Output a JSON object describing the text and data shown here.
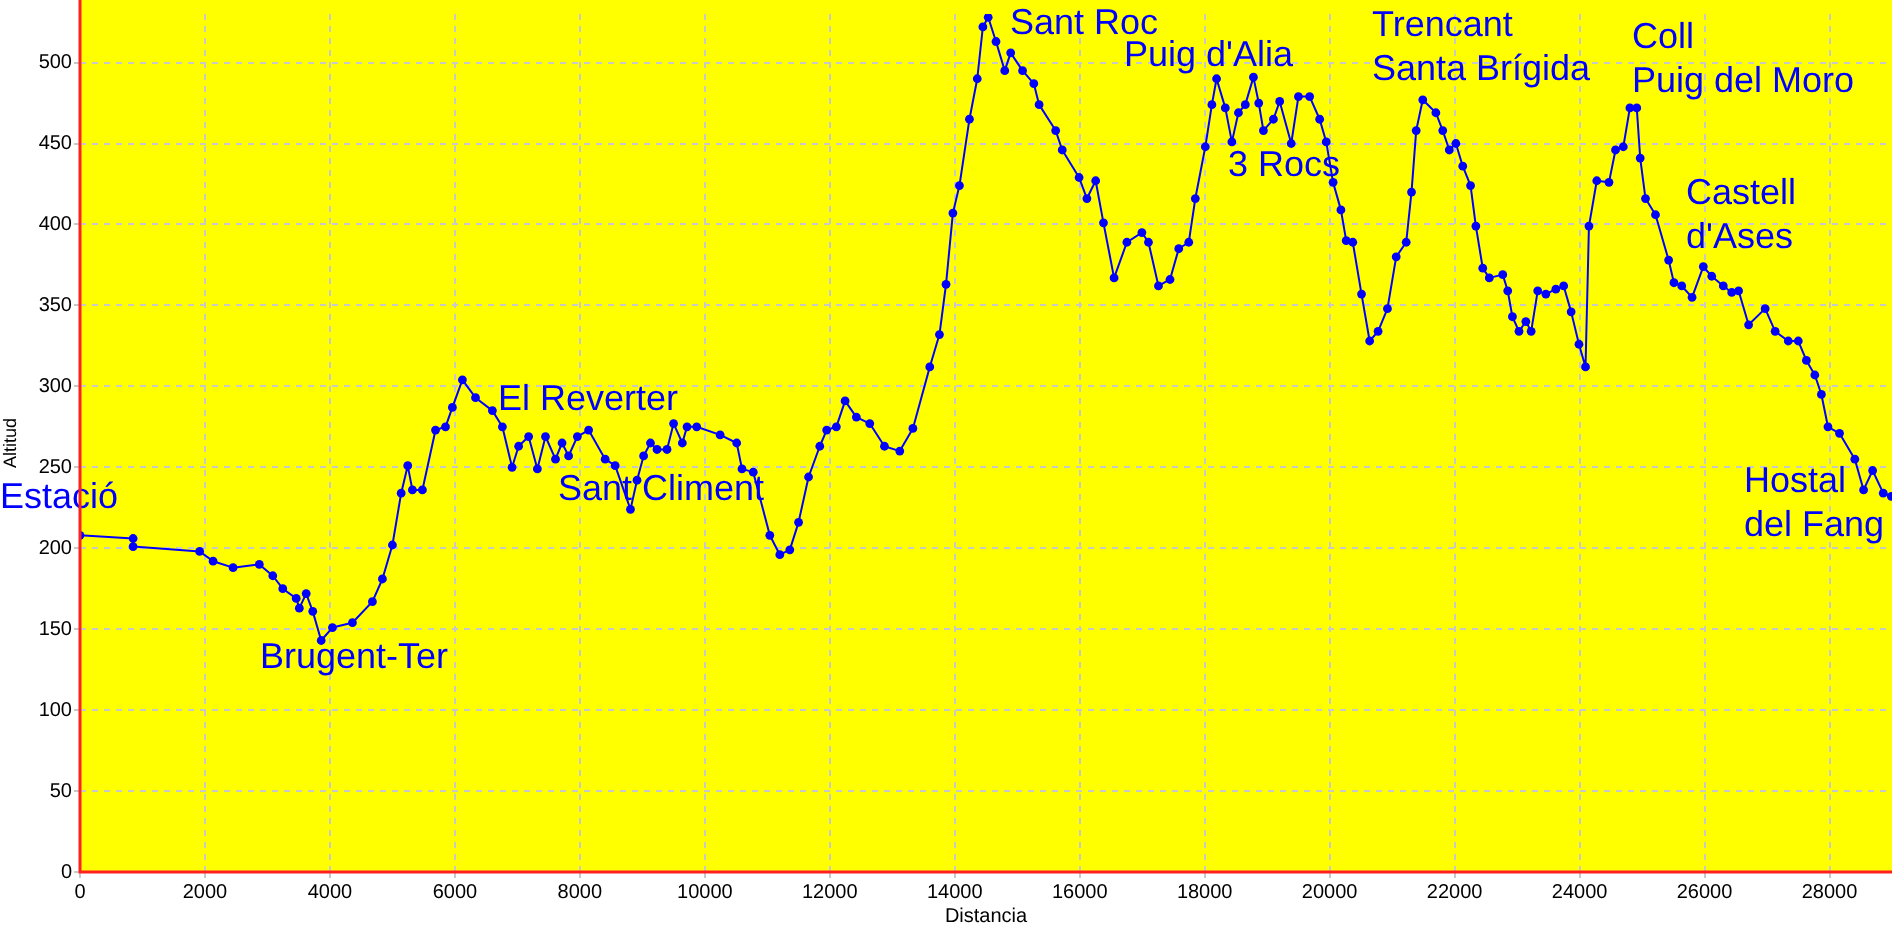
{
  "chart_data": {
    "type": "line",
    "xlabel": "Distancia",
    "ylabel": "Altitud",
    "xlim": [
      0,
      29000
    ],
    "xticks": [
      0,
      2000,
      4000,
      6000,
      8000,
      10000,
      12000,
      14000,
      16000,
      18000,
      20000,
      22000,
      24000,
      26000,
      28000
    ],
    "ylim": [
      0,
      530
    ],
    "yticks": [
      0,
      50,
      100,
      150,
      200,
      250,
      300,
      350,
      400,
      450,
      500
    ],
    "grid": true,
    "legend": false,
    "marker": "circle",
    "line_style": "solid",
    "annotations": [
      "Estació",
      "Brugent-Ter",
      "El Reverter",
      "Sant Climent",
      "Sant Roc",
      "Puig d'Alia",
      "3 Rocs",
      "Trencant\nSanta Brígida",
      "Coll\nPuig del Moro",
      "Castell\nd'Ases",
      "Hostal\ndel Fang"
    ],
    "series": [
      {
        "color": "#0000ff",
        "x": [
          0,
          850,
          850,
          1915,
          2130,
          2450,
          2870,
          3085,
          3245,
          3460,
          3510,
          3620,
          3725,
          3860,
          4040,
          4360,
          4680,
          4840,
          5000,
          5140,
          5245,
          5320,
          5480,
          5690,
          5850,
          5960,
          6120,
          6330,
          6600,
          6760,
          6915,
          7020,
          7180,
          7320,
          7450,
          7610,
          7715,
          7820,
          7960,
          8140,
          8405,
          8565,
          8810,
          8915,
          9020,
          9130,
          9235,
          9395,
          9500,
          9640,
          9715,
          9870,
          10245,
          10510,
          10595,
          10775,
          11040,
          11200,
          11360,
          11500,
          11660,
          11840,
          11950,
          12105,
          12245,
          12425,
          12640,
          12875,
          13120,
          13330,
          13600,
          13755,
          13860,
          13970,
          14075,
          14235,
          14360,
          14450,
          14535,
          14660,
          14800,
          14895,
          15085,
          15265,
          15350,
          15615,
          15720,
          15990,
          16115,
          16255,
          16380,
          16550,
          16755,
          16995,
          17100,
          17260,
          17445,
          17585,
          17745,
          17850,
          18010,
          18115,
          18190,
          18330,
          18435,
          18540,
          18650,
          18780,
          18865,
          18940,
          19100,
          19200,
          19385,
          19500,
          19680,
          19840,
          19945,
          20055,
          20180,
          20265,
          20370,
          20510,
          20640,
          20775,
          20925,
          21065,
          21225,
          21310,
          21385,
          21490,
          21700,
          21810,
          21915,
          22020,
          22130,
          22255,
          22340,
          22450,
          22555,
          22770,
          22850,
          22925,
          23030,
          23140,
          23225,
          23330,
          23460,
          23620,
          23745,
          23865,
          23990,
          24095,
          24150,
          24275,
          24470,
          24575,
          24700,
          24805,
          24915,
          24970,
          25055,
          25215,
          25425,
          25510,
          25635,
          25800,
          25980,
          26115,
          26300,
          26435,
          26545,
          26705,
          26970,
          27130,
          27340,
          27500,
          27630,
          27765,
          27870,
          27975,
          28160,
          28405,
          28545,
          28690,
          28860,
          28990
        ],
        "values": [
          208,
          206,
          201,
          198,
          192,
          188,
          190,
          183,
          175,
          169,
          163,
          172,
          161,
          143,
          151,
          154,
          167,
          181,
          202,
          234,
          251,
          236,
          236,
          273,
          275,
          287,
          304,
          293,
          285,
          275,
          250,
          263,
          269,
          249,
          269,
          255,
          265,
          257,
          269,
          273,
          255,
          251,
          224,
          242,
          257,
          265,
          261,
          261,
          277,
          265,
          275,
          275,
          270,
          265,
          249,
          247,
          208,
          196,
          199,
          216,
          244,
          263,
          273,
          275,
          291,
          281,
          277,
          263,
          260,
          274,
          312,
          332,
          363,
          407,
          424,
          465,
          490,
          522,
          528,
          513,
          495,
          506,
          495,
          487,
          474,
          458,
          446,
          429,
          416,
          427,
          401,
          367,
          389,
          395,
          389,
          362,
          366,
          385,
          389,
          416,
          448,
          474,
          490,
          472,
          451,
          469,
          474,
          491,
          475,
          458,
          465,
          476,
          450,
          479,
          479,
          465,
          451,
          426,
          409,
          390,
          389,
          357,
          328,
          334,
          348,
          380,
          389,
          420,
          458,
          477,
          469,
          458,
          446,
          450,
          436,
          424,
          399,
          373,
          367,
          369,
          359,
          343,
          334,
          340,
          334,
          359,
          357,
          360,
          362,
          346,
          326,
          312,
          399,
          427,
          426,
          446,
          448,
          472,
          472,
          441,
          416,
          406,
          378,
          364,
          362,
          355,
          374,
          368,
          362,
          358,
          359,
          338,
          348,
          334,
          328,
          328,
          316,
          307,
          295,
          275,
          271,
          255,
          236,
          248,
          234,
          232
        ]
      }
    ]
  }
}
